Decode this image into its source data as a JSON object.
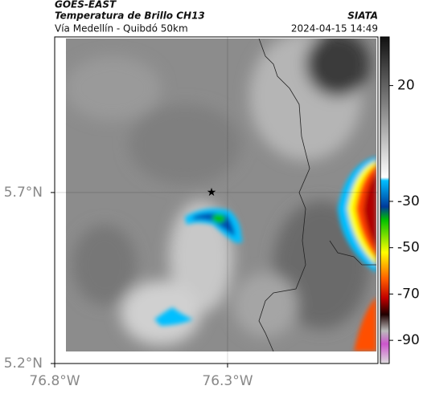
{
  "header": {
    "source": "GOES-EAST",
    "title": "Temperatura de Brillo CH13",
    "subtitle": "Vía Medellín - Quibdó 50km",
    "brand": "SIATA",
    "timestamp": "2024-04-15 14:49"
  },
  "map": {
    "xlim": [
      76.8,
      75.865
    ],
    "ylim": [
      5.2,
      6.155
    ],
    "xticks": [
      {
        "value": 76.8,
        "label": "76.8°W"
      },
      {
        "value": 76.3,
        "label": "76.3°W"
      }
    ],
    "yticks": [
      {
        "value": 5.7,
        "label": "5.7°N"
      },
      {
        "value": 5.2,
        "label": "5.2°N"
      }
    ],
    "grid": true
  },
  "colorbar": {
    "clim": [
      41,
      -100
    ],
    "ticks": [
      20,
      -30,
      -50,
      -70,
      -90
    ]
  }
}
